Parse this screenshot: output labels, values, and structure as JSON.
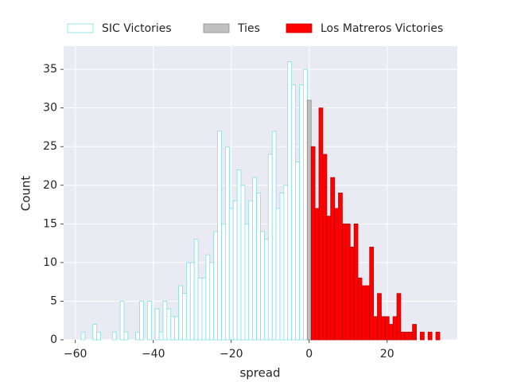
{
  "chart_data": {
    "type": "histogram",
    "xlabel": "spread",
    "ylabel": "Count",
    "xlim": [
      -63,
      38
    ],
    "ylim": [
      0,
      38
    ],
    "xticks": [
      {
        "value": -60,
        "label": "−60"
      },
      {
        "value": -40,
        "label": "−40"
      },
      {
        "value": -20,
        "label": "−20"
      },
      0,
      20
    ],
    "yticks": [
      0,
      5,
      10,
      15,
      20,
      25,
      30,
      35
    ],
    "grid": true,
    "legend": "upper center",
    "series": [
      {
        "name": "SIC Victories",
        "color": "#ffffff",
        "edgecolor": "#7fdfe6",
        "bins": [
          -58.5,
          -57.5,
          -56.5,
          -55.5,
          -54.5,
          -53.5,
          -52.5,
          -51.5,
          -50.5,
          -49.5,
          -48.5,
          -47.5,
          -46.5,
          -45.5,
          -44.5,
          -43.5,
          -42.5,
          -41.5,
          -40.5,
          -39.5,
          -38.5,
          -37.5,
          -36.5,
          -35.5,
          -34.5,
          -33.5,
          -32.5,
          -31.5,
          -30.5,
          -29.5,
          -28.5,
          -27.5,
          -26.5,
          -25.5,
          -24.5,
          -23.5,
          -22.5,
          -21.5,
          -20.5,
          -19.5,
          -18.5,
          -17.5,
          -16.5,
          -15.5,
          -14.5,
          -13.5,
          -12.5,
          -11.5,
          -10.5,
          -9.5,
          -8.5,
          -7.5,
          -6.5,
          -5.5,
          -4.5,
          -3.5,
          -2.5,
          -1.5,
          -0.5
        ],
        "values": [
          1,
          0,
          0,
          2,
          1,
          0,
          0,
          0,
          1,
          0,
          5,
          1,
          0,
          0,
          1,
          5,
          0,
          5,
          0,
          4,
          1,
          5,
          4,
          3,
          3,
          7,
          6,
          10,
          10,
          13,
          8,
          8,
          11,
          10,
          14,
          27,
          15,
          25,
          17,
          18,
          22,
          20,
          15,
          18,
          21,
          19,
          14,
          13,
          24,
          27,
          17,
          19,
          20,
          36,
          33,
          23,
          33,
          35
        ]
      },
      {
        "name": "Ties",
        "color": "#c0c0c0",
        "edgecolor": "#8c8c8c",
        "bins": [
          -0.5,
          0.5
        ],
        "values": [
          31
        ]
      },
      {
        "name": "Los Matreros Victories",
        "color": "#ff0000",
        "edgecolor": "#c00000",
        "bins": [
          0.5,
          1.5,
          2.5,
          3.5,
          4.5,
          5.5,
          6.5,
          7.5,
          8.5,
          9.5,
          10.5,
          11.5,
          12.5,
          13.5,
          14.5,
          15.5,
          16.5,
          17.5,
          18.5,
          19.5,
          20.5,
          21.5,
          22.5,
          23.5,
          24.5,
          25.5,
          26.5,
          27.5,
          28.5,
          29.5,
          30.5,
          31.5,
          32.5,
          33.5
        ],
        "values": [
          25,
          17,
          30,
          24,
          16,
          21,
          17,
          19,
          15,
          15,
          12,
          15,
          8,
          7,
          7,
          12,
          3,
          6,
          3,
          3,
          2,
          3,
          6,
          1,
          1,
          1,
          2,
          0,
          1,
          0,
          1,
          0,
          1
        ]
      }
    ]
  }
}
